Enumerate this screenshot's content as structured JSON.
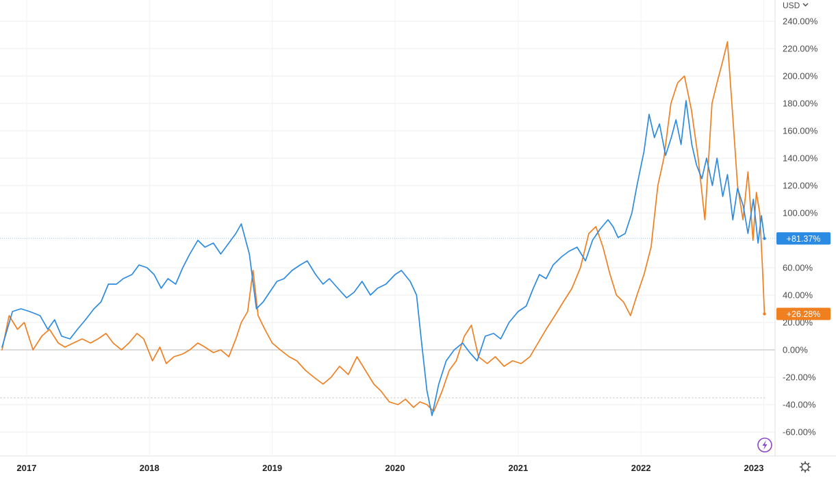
{
  "currency": {
    "label": "USD",
    "icon": "chevron-down-icon"
  },
  "icons": {
    "lightning": "lightning-icon",
    "settings": "gear-icon"
  },
  "colors": {
    "blue": "#2b8ae2",
    "orange": "#f07f20",
    "zero_line": "#c8c8c8",
    "grid": "#eeeeee",
    "badge_blue": "#2b8ae2",
    "badge_orange": "#f07f20",
    "lightning": "#8e44c8"
  },
  "chart_data": {
    "type": "line",
    "x_range": [
      "2016-10-20",
      "2023-01-06"
    ],
    "ylim": [
      -70,
      245
    ],
    "y_ticks": [
      "240.00%",
      "220.00%",
      "200.00%",
      "180.00%",
      "160.00%",
      "140.00%",
      "120.00%",
      "100.00%",
      "60.00%",
      "40.00%",
      "20.00%",
      "0.00%",
      "-20.00%",
      "-40.00%",
      "-60.00%"
    ],
    "y_tick_values": [
      240,
      220,
      200,
      180,
      160,
      140,
      120,
      100,
      60,
      40,
      20,
      0,
      -20,
      -40,
      -60
    ],
    "x_ticks": [
      "2017",
      "2018",
      "2019",
      "2020",
      "2021",
      "2022",
      "2023"
    ],
    "x_tick_dates": [
      "2017-01-01",
      "2018-01-01",
      "2019-01-01",
      "2020-01-01",
      "2021-01-01",
      "2022-01-01",
      "2023-01-01"
    ],
    "reference_lines": [
      0,
      81.37,
      -35
    ],
    "series": [
      {
        "label": "+81.37%",
        "color": "blue",
        "x": [
          "2016-10-20",
          "2016-11-20",
          "2016-12-15",
          "2017-01-10",
          "2017-02-10",
          "2017-03-05",
          "2017-03-25",
          "2017-04-15",
          "2017-05-10",
          "2017-06-01",
          "2017-06-25",
          "2017-07-20",
          "2017-08-10",
          "2017-09-01",
          "2017-09-25",
          "2017-10-15",
          "2017-11-10",
          "2017-12-01",
          "2017-12-25",
          "2018-01-15",
          "2018-02-05",
          "2018-02-25",
          "2018-03-20",
          "2018-04-10",
          "2018-05-01",
          "2018-05-25",
          "2018-06-15",
          "2018-07-10",
          "2018-08-01",
          "2018-08-25",
          "2018-09-15",
          "2018-10-01",
          "2018-10-25",
          "2018-11-15",
          "2018-12-05",
          "2018-12-24",
          "2019-01-15",
          "2019-02-05",
          "2019-03-01",
          "2019-03-25",
          "2019-04-15",
          "2019-05-10",
          "2019-06-01",
          "2019-06-20",
          "2019-07-15",
          "2019-08-10",
          "2019-09-01",
          "2019-09-25",
          "2019-10-20",
          "2019-11-10",
          "2019-12-05",
          "2020-01-01",
          "2020-01-20",
          "2020-02-15",
          "2020-03-05",
          "2020-03-20",
          "2020-04-05",
          "2020-04-20",
          "2020-05-10",
          "2020-06-01",
          "2020-06-25",
          "2020-07-20",
          "2020-08-10",
          "2020-09-01",
          "2020-09-25",
          "2020-10-20",
          "2020-11-10",
          "2020-12-05",
          "2021-01-01",
          "2021-01-25",
          "2021-02-15",
          "2021-03-05",
          "2021-03-25",
          "2021-04-15",
          "2021-05-10",
          "2021-06-01",
          "2021-06-25",
          "2021-07-20",
          "2021-08-10",
          "2021-09-01",
          "2021-09-25",
          "2021-10-10",
          "2021-10-25",
          "2021-11-15",
          "2021-12-05",
          "2021-12-20",
          "2022-01-10",
          "2022-01-25",
          "2022-02-10",
          "2022-02-25",
          "2022-03-15",
          "2022-04-01",
          "2022-04-15",
          "2022-04-30",
          "2022-05-15",
          "2022-06-01",
          "2022-06-15",
          "2022-07-01",
          "2022-07-15",
          "2022-08-01",
          "2022-08-15",
          "2022-09-01",
          "2022-09-15",
          "2022-10-01",
          "2022-10-15",
          "2022-11-01",
          "2022-11-15",
          "2022-12-01",
          "2022-12-15",
          "2022-12-25",
          "2023-01-03"
        ],
        "y": [
          2,
          28,
          30,
          28,
          25,
          15,
          22,
          10,
          8,
          15,
          22,
          30,
          35,
          48,
          48,
          52,
          55,
          62,
          60,
          55,
          45,
          52,
          48,
          60,
          70,
          80,
          75,
          78,
          70,
          78,
          85,
          92,
          70,
          30,
          35,
          42,
          50,
          52,
          58,
          62,
          65,
          55,
          48,
          52,
          45,
          38,
          42,
          50,
          40,
          45,
          48,
          55,
          58,
          50,
          40,
          5,
          -30,
          -48,
          -25,
          -8,
          0,
          5,
          -2,
          -8,
          10,
          12,
          8,
          20,
          28,
          32,
          45,
          55,
          52,
          62,
          68,
          72,
          75,
          65,
          80,
          88,
          95,
          90,
          82,
          85,
          100,
          120,
          145,
          172,
          155,
          165,
          142,
          155,
          168,
          150,
          182,
          150,
          135,
          125,
          140,
          120,
          140,
          112,
          128,
          95,
          118,
          105,
          85,
          110,
          78,
          98,
          81.37
        ]
      },
      {
        "label": "+26.28%",
        "color": "orange",
        "x": [
          "2016-10-20",
          "2016-11-10",
          "2016-12-05",
          "2016-12-25",
          "2017-01-20",
          "2017-02-15",
          "2017-03-10",
          "2017-04-05",
          "2017-04-25",
          "2017-05-20",
          "2017-06-15",
          "2017-07-10",
          "2017-08-01",
          "2017-08-25",
          "2017-09-15",
          "2017-10-10",
          "2017-11-01",
          "2017-11-25",
          "2017-12-15",
          "2018-01-10",
          "2018-02-01",
          "2018-02-20",
          "2018-03-15",
          "2018-04-10",
          "2018-05-01",
          "2018-05-25",
          "2018-06-15",
          "2018-07-10",
          "2018-08-01",
          "2018-08-25",
          "2018-09-15",
          "2018-10-01",
          "2018-10-20",
          "2018-11-05",
          "2018-11-20",
          "2018-12-10",
          "2019-01-01",
          "2019-01-25",
          "2019-02-20",
          "2019-03-15",
          "2019-04-10",
          "2019-05-05",
          "2019-06-01",
          "2019-06-25",
          "2019-07-20",
          "2019-08-15",
          "2019-09-10",
          "2019-10-05",
          "2019-10-30",
          "2019-11-20",
          "2019-12-15",
          "2020-01-10",
          "2020-02-01",
          "2020-02-25",
          "2020-03-15",
          "2020-04-05",
          "2020-04-25",
          "2020-05-20",
          "2020-06-10",
          "2020-07-01",
          "2020-07-25",
          "2020-08-15",
          "2020-09-05",
          "2020-10-01",
          "2020-10-25",
          "2020-11-20",
          "2020-12-15",
          "2021-01-10",
          "2021-02-05",
          "2021-03-01",
          "2021-03-25",
          "2021-04-20",
          "2021-05-15",
          "2021-06-10",
          "2021-07-05",
          "2021-07-30",
          "2021-08-20",
          "2021-09-10",
          "2021-10-01",
          "2021-10-20",
          "2021-11-10",
          "2021-12-01",
          "2021-12-20",
          "2022-01-10",
          "2022-01-31",
          "2022-02-20",
          "2022-03-10",
          "2022-03-31",
          "2022-04-20",
          "2022-05-10",
          "2022-05-31",
          "2022-06-20",
          "2022-07-10",
          "2022-07-31",
          "2022-08-15",
          "2022-08-31",
          "2022-09-15",
          "2022-10-01",
          "2022-10-15",
          "2022-10-31",
          "2022-11-15",
          "2022-11-30",
          "2022-12-10",
          "2022-12-20",
          "2022-12-28",
          "2023-01-03"
        ],
        "y": [
          0,
          25,
          15,
          20,
          0,
          10,
          15,
          5,
          2,
          5,
          8,
          5,
          8,
          12,
          5,
          0,
          5,
          12,
          8,
          -8,
          2,
          -10,
          -5,
          -3,
          0,
          5,
          2,
          -2,
          0,
          -5,
          8,
          20,
          28,
          58,
          25,
          15,
          5,
          0,
          -5,
          -8,
          -15,
          -20,
          -25,
          -20,
          -12,
          -18,
          -5,
          -15,
          -25,
          -30,
          -38,
          -40,
          -36,
          -42,
          -38,
          -40,
          -45,
          -30,
          -15,
          -8,
          10,
          18,
          -5,
          -10,
          -5,
          -12,
          -8,
          -10,
          -5,
          5,
          15,
          25,
          35,
          45,
          60,
          85,
          90,
          75,
          55,
          40,
          35,
          25,
          40,
          55,
          75,
          120,
          140,
          180,
          195,
          200,
          175,
          140,
          95,
          180,
          195,
          210,
          225,
          170,
          120,
          95,
          130,
          80,
          115,
          100,
          60,
          26.28
        ]
      }
    ]
  }
}
